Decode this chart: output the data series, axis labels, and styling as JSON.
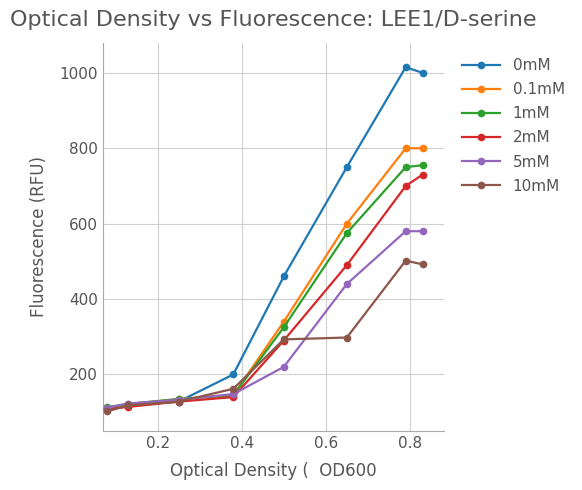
{
  "title": "Optical Density vs Fluorescence: LEE1/D-serine",
  "xlabel": "Optical Density (  OD600",
  "ylabel": "Fluorescence (RFU)",
  "series": [
    {
      "label": "0mM",
      "color": "#1e78b4",
      "x": [
        0.08,
        0.13,
        0.25,
        0.38,
        0.5,
        0.65,
        0.79,
        0.83
      ],
      "y": [
        108,
        118,
        128,
        200,
        460,
        750,
        1015,
        1000
      ]
    },
    {
      "label": "0.1mM",
      "color": "#ff7f0e",
      "x": [
        0.08,
        0.13,
        0.25,
        0.38,
        0.5,
        0.65,
        0.79,
        0.83
      ],
      "y": [
        112,
        120,
        135,
        145,
        340,
        600,
        800,
        800
      ]
    },
    {
      "label": "1mM",
      "color": "#2ca02c",
      "x": [
        0.08,
        0.13,
        0.25,
        0.38,
        0.5,
        0.65,
        0.79,
        0.83
      ],
      "y": [
        113,
        122,
        135,
        145,
        325,
        575,
        750,
        755
      ]
    },
    {
      "label": "2mM",
      "color": "#d62728",
      "x": [
        0.08,
        0.13,
        0.25,
        0.38,
        0.5,
        0.65,
        0.79,
        0.83
      ],
      "y": [
        108,
        114,
        128,
        140,
        290,
        490,
        700,
        730
      ]
    },
    {
      "label": "5mM",
      "color": "#9467bd",
      "x": [
        0.08,
        0.13,
        0.25,
        0.38,
        0.5,
        0.65,
        0.79,
        0.83
      ],
      "y": [
        112,
        123,
        133,
        148,
        220,
        440,
        580,
        580
      ]
    },
    {
      "label": "10mM",
      "color": "#8c564b",
      "x": [
        0.08,
        0.13,
        0.25,
        0.38,
        0.5,
        0.65,
        0.79,
        0.83
      ],
      "y": [
        102,
        118,
        128,
        162,
        293,
        298,
        502,
        492
      ]
    }
  ],
  "xlim": [
    0.07,
    0.88
  ],
  "ylim": [
    50,
    1080
  ],
  "xticks": [
    0.2,
    0.4,
    0.6,
    0.8
  ],
  "yticks": [
    200,
    400,
    600,
    800,
    1000
  ],
  "grid": true,
  "background_color": "#ffffff",
  "title_fontsize": 16,
  "label_fontsize": 12,
  "tick_fontsize": 11,
  "legend_fontsize": 11,
  "spine_color": "#aaaaaa",
  "grid_color": "#d0d0d0",
  "text_color": "#555555"
}
